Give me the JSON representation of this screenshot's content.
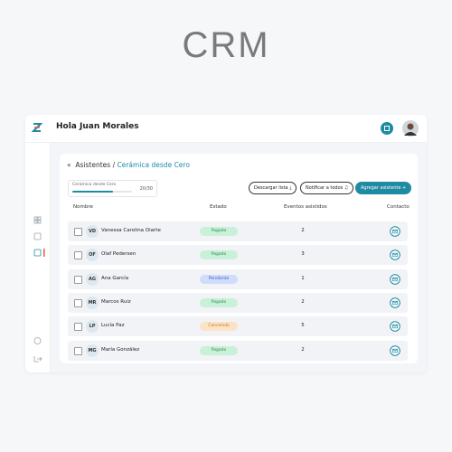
{
  "header": {
    "brand": "CRM"
  },
  "app": {
    "greeting": "Hola Juan Morales"
  },
  "breadcrumb": {
    "back": "«",
    "parent": "Asistentes",
    "separator": "/",
    "current": "Cerámica desde Cero"
  },
  "progress": {
    "label": "Cerámica desde Cero",
    "count": "20/30"
  },
  "actions": {
    "download": "Descargar lista",
    "notify": "Notificar a todos",
    "add": "Agregar asistente"
  },
  "table": {
    "columns": [
      "Nombre",
      "Estado",
      "Eventos asistidos",
      "Contacto"
    ],
    "rows": [
      {
        "initials": "VD",
        "name": "Vanessa Carolina Oiarte",
        "status": "Pagado",
        "events": 2
      },
      {
        "initials": "OF",
        "name": "Olaf Pedersen",
        "status": "Pagado",
        "events": 3
      },
      {
        "initials": "AG",
        "name": "Ana García",
        "status": "Pendiente",
        "events": 1
      },
      {
        "initials": "MR",
        "name": "Marcos Ruiz",
        "status": "Pagado",
        "events": 2
      },
      {
        "initials": "LP",
        "name": "Lucía Paz",
        "status": "Cancelado",
        "events": 5
      },
      {
        "initials": "MG",
        "name": "María González",
        "status": "Pagado",
        "events": 2
      }
    ]
  }
}
